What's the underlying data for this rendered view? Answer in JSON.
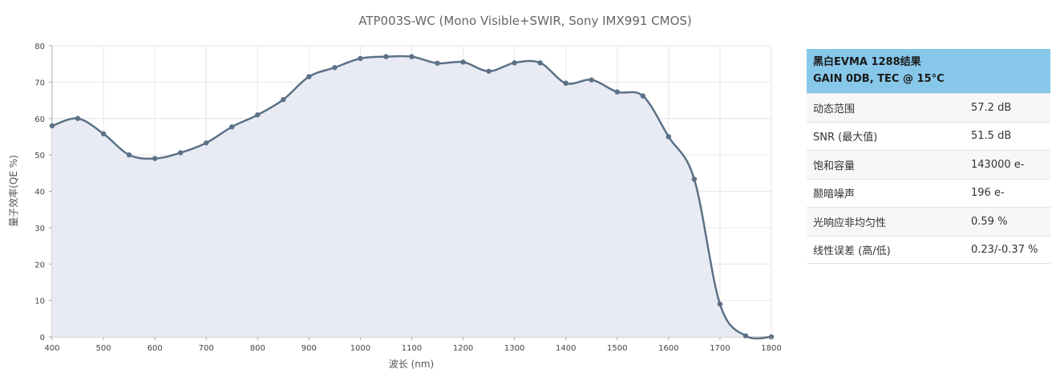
{
  "chart_data": {
    "type": "line",
    "title": "ATP003S-WC (Mono Visible+SWIR, Sony IMX991 CMOS)",
    "xlabel": "波长 (nm)",
    "ylabel": "量子效率(QE %)",
    "xlim": [
      400,
      1800
    ],
    "ylim": [
      0,
      80
    ],
    "xticks": [
      "400",
      "500",
      "600",
      "700",
      "800",
      "900",
      "1000",
      "1100",
      "1200",
      "1300",
      "1400",
      "1500",
      "1600",
      "1700",
      "1800"
    ],
    "yticks": [
      "0",
      "10",
      "20",
      "30",
      "40",
      "50",
      "60",
      "70",
      "80"
    ],
    "grid": true,
    "fill_area": true,
    "colors": {
      "line": "#5c7186",
      "fill": "#e8ebf4",
      "grid": "#e6e6e6",
      "axis": "#aaaaaa"
    },
    "series": [
      {
        "x": [
          400,
          450,
          500,
          550,
          600,
          650,
          700,
          750,
          800,
          850,
          900,
          950,
          1000,
          1050,
          1100,
          1150,
          1200,
          1250,
          1300,
          1350,
          1400,
          1450,
          1500,
          1550,
          1600,
          1650,
          1700,
          1750,
          1800
        ],
        "values": [
          58,
          60,
          55.8,
          50,
          49,
          50.6,
          53.3,
          57.7,
          61,
          65.2,
          71.5,
          74,
          76.5,
          77,
          77,
          75.2,
          75.5,
          73,
          75.3,
          75.3,
          69.7,
          70.6,
          67.3,
          66.2,
          55,
          43.3,
          9,
          0.3,
          0
        ]
      }
    ]
  },
  "spec_table": {
    "header_line1": "黑白EVMA 1288结果",
    "header_line2": "GAIN 0DB, TEC @ 15°C",
    "rows": [
      {
        "label": "动态范围",
        "value": "57.2 dB"
      },
      {
        "label": "SNR (最大值)",
        "value": "51.5 dB"
      },
      {
        "label": "饱和容量",
        "value": "143000 e-"
      },
      {
        "label": "颞暗噪声",
        "value": "196 e-"
      },
      {
        "label": "光响应非均匀性",
        "value": "0.59 %"
      },
      {
        "label": "线性误差 (高/低)",
        "value": "0.23/-0.37 %"
      }
    ]
  }
}
